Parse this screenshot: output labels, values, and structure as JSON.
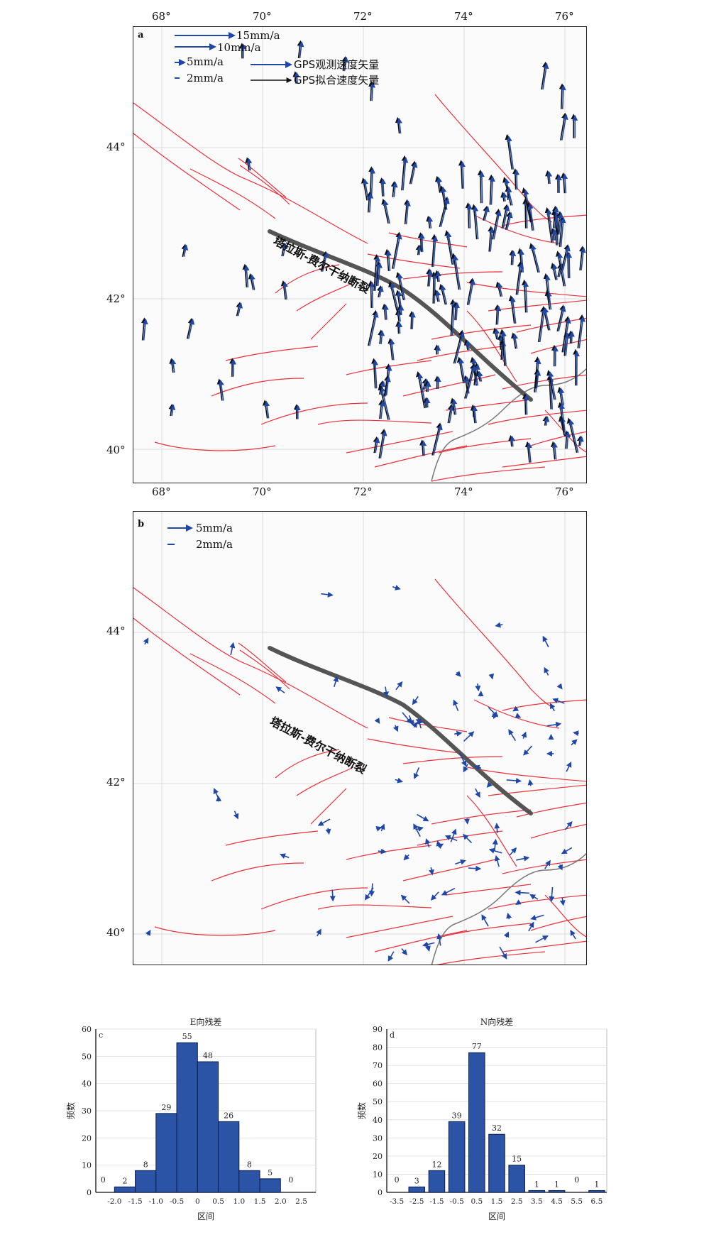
{
  "map": {
    "x_ticks": [
      "68°",
      "70°",
      "72°",
      "74°",
      "76°"
    ],
    "y_ticks": [
      "44°",
      "42°",
      "40°"
    ],
    "fault_name": "塔拉斯-费尔干纳断裂",
    "colors": {
      "fault": "#e8303a",
      "main_fault": "#555555",
      "observed": "#1f47a8",
      "fitted": "#111111",
      "border": "#777777"
    },
    "panel_a": {
      "label": "a",
      "legend": {
        "scales": [
          "15mm/a",
          "10mm/a",
          "5mm/a",
          "2mm/a"
        ],
        "observed_label": "GPS观测速度矢量",
        "fitted_label": "GPS拟合速度矢量"
      }
    },
    "panel_b": {
      "label": "b",
      "legend": {
        "scales": [
          "5mm/a",
          "2mm/a"
        ]
      }
    }
  },
  "chart_data": [
    {
      "type": "bar",
      "panel": "c",
      "title": "E向残差",
      "xlabel": "区间",
      "ylabel": "频数",
      "ylim": [
        0,
        60
      ],
      "yticks": [
        "0",
        "10",
        "20",
        "30",
        "40",
        "50",
        "60"
      ],
      "x_tick_labels": [
        "-2.0",
        "-1.5",
        "-1.0",
        "-0.5",
        "0",
        "0.5",
        "1.0",
        "1.5",
        "2.0",
        "2.5"
      ],
      "bin_edges": [
        -2.0,
        -1.5,
        -1.0,
        -0.5,
        0,
        0.5,
        1.0,
        1.5,
        2.0
      ],
      "values": [
        2,
        8,
        29,
        55,
        48,
        26,
        8,
        5
      ],
      "end_labels": [
        "0",
        "0"
      ],
      "bar_color": "#2b54a6"
    },
    {
      "type": "bar",
      "panel": "d",
      "title": "N向残差",
      "xlabel": "区间",
      "ylabel": "频数",
      "ylim": [
        0,
        90
      ],
      "yticks": [
        "0",
        "10",
        "20",
        "30",
        "40",
        "50",
        "60",
        "70",
        "80",
        "90"
      ],
      "x_tick_labels": [
        "-3.5",
        "-2.5",
        "-1.5",
        "-0.5",
        "0.5",
        "1.5",
        "2.5",
        "3.5",
        "4.5",
        "5.5",
        "6.5"
      ],
      "values": [
        0,
        3,
        12,
        39,
        77,
        32,
        15,
        1,
        1,
        0,
        1
      ],
      "bar_color": "#2b54a6"
    }
  ]
}
